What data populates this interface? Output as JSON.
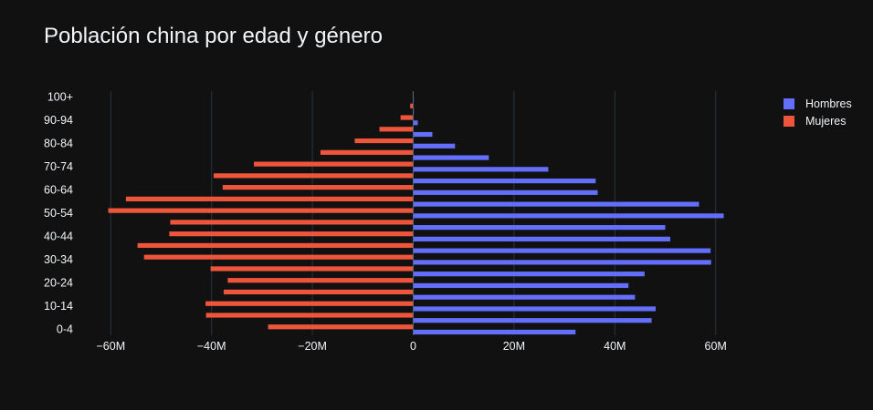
{
  "chart_data": {
    "type": "bar",
    "orientation": "horizontal",
    "title": "Población china por edad y género",
    "y_tick_labels": [
      "0-4",
      "10-14",
      "20-24",
      "30-34",
      "40-44",
      "50-54",
      "60-64",
      "70-74",
      "80-84",
      "90-94",
      "100+"
    ],
    "categories": [
      "0-4",
      "5-9",
      "10-14",
      "15-19",
      "20-24",
      "25-29",
      "30-34",
      "35-39",
      "40-44",
      "45-49",
      "50-54",
      "55-59",
      "60-64",
      "65-69",
      "70-74",
      "75-79",
      "80-84",
      "85-89",
      "90-94",
      "95-99",
      "100+"
    ],
    "x_tick_values": [
      -60000000,
      -40000000,
      -20000000,
      0,
      20000000,
      40000000,
      60000000
    ],
    "x_tick_labels": [
      "−60M",
      "−40M",
      "−20M",
      "0",
      "20M",
      "40M",
      "60M"
    ],
    "xlim": [
      -68000000,
      68000000
    ],
    "series": [
      {
        "name": "Hombres",
        "color": "#636efa",
        "values": [
          32200000,
          47300000,
          48100000,
          44000000,
          42700000,
          45900000,
          59100000,
          59000000,
          51000000,
          50000000,
          61600000,
          56700000,
          36600000,
          36200000,
          26800000,
          15000000,
          8300000,
          3800000,
          900000,
          130000,
          10000
        ]
      },
      {
        "name": "Mujeres",
        "color": "#ef553b",
        "values": [
          -28800000,
          -41100000,
          -41200000,
          -37600000,
          -36800000,
          -40200000,
          -53400000,
          -54700000,
          -48400000,
          -48200000,
          -60500000,
          -57000000,
          -37800000,
          -39600000,
          -31600000,
          -18400000,
          -11600000,
          -6700000,
          -2500000,
          -600000,
          -100000
        ]
      }
    ],
    "grid": true,
    "legend": "top-right"
  }
}
